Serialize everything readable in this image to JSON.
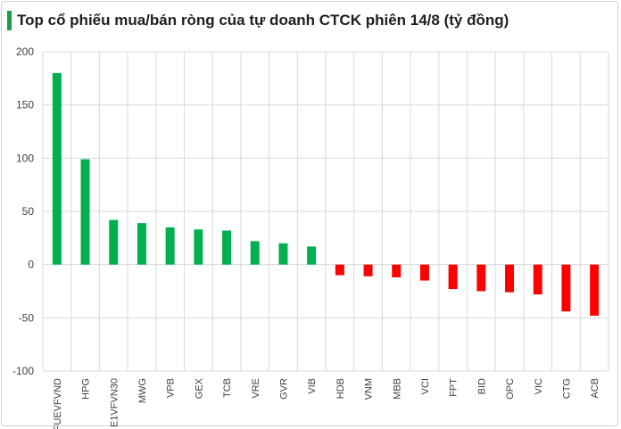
{
  "title": "Top cổ phiếu mua/bán ròng của tự doanh CTCK phiên 14/8 (tỷ đồng)",
  "colors": {
    "positive": "#00b050",
    "negative": "#ff0000",
    "accent": "#1a9e4b",
    "grid": "#d9d9d9",
    "axis_text": "#404040"
  },
  "chart_data": {
    "type": "bar",
    "title": "Top cổ phiếu mua/bán ròng của tự doanh CTCK phiên 14/8 (tỷ đồng)",
    "categories": [
      "FUEVFVND",
      "HPG",
      "E1VFVN30",
      "MWG",
      "VPB",
      "GEX",
      "TCB",
      "VRE",
      "GVR",
      "VIB",
      "HDB",
      "VNM",
      "MBB",
      "VCI",
      "FPT",
      "BID",
      "OPC",
      "VIC",
      "CTG",
      "ACB"
    ],
    "values": [
      180,
      99,
      42,
      39,
      35,
      33,
      32,
      22,
      20,
      17,
      -10,
      -11,
      -12,
      -15,
      -23,
      -25,
      -26,
      -28,
      -44,
      -48
    ],
    "ylim": [
      -100,
      200
    ],
    "yticks": [
      200,
      150,
      100,
      50,
      0,
      -50,
      -100
    ],
    "grid": true,
    "xlabel": "",
    "ylabel": ""
  }
}
